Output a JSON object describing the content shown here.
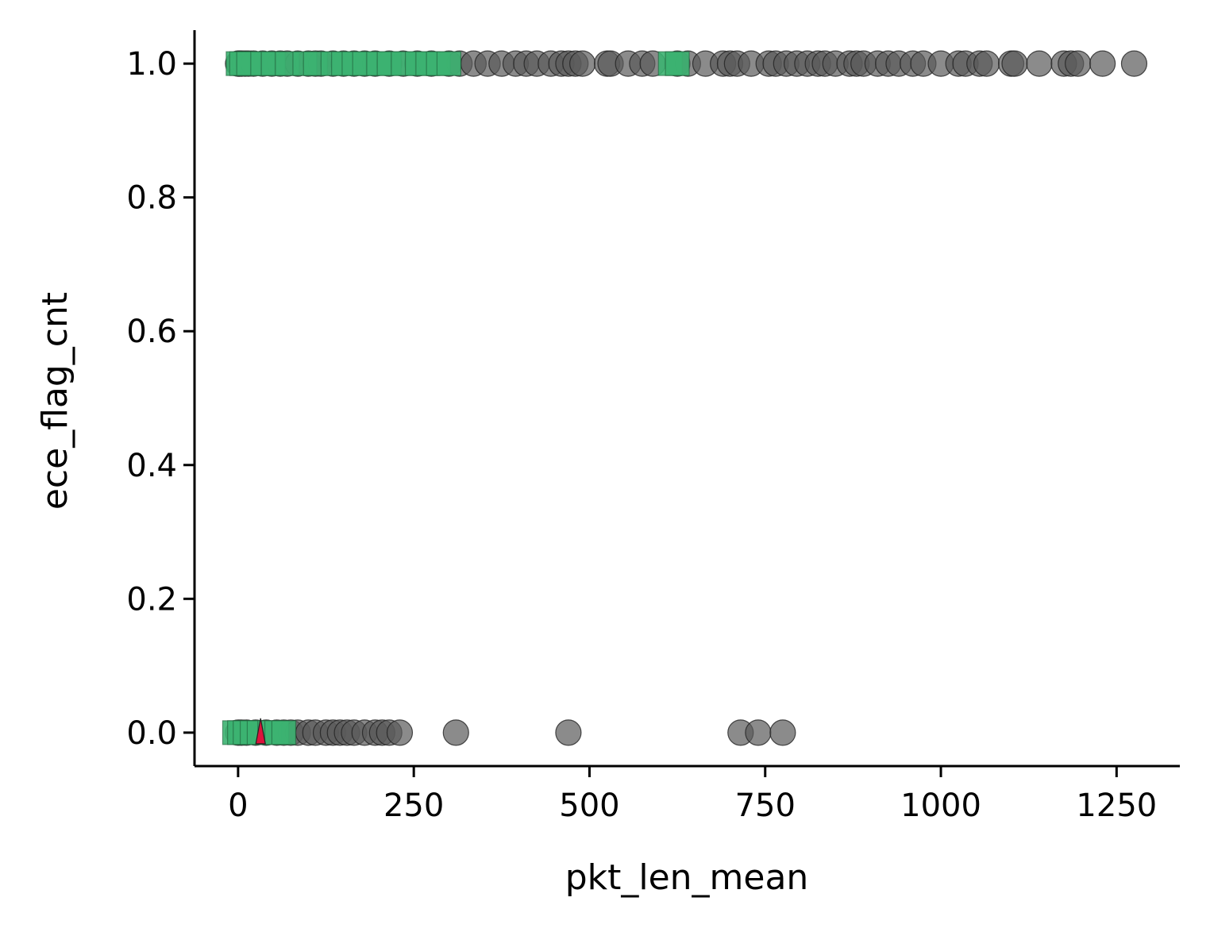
{
  "chart_data": {
    "type": "scatter",
    "xlabel": "pkt_len_mean",
    "ylabel": "ece_flag_cnt",
    "xlim": [
      -62,
      1340
    ],
    "ylim": [
      -0.05,
      1.05
    ],
    "x_ticks": [
      0,
      250,
      500,
      750,
      1000,
      1250
    ],
    "x_tick_labels": [
      "0",
      "250",
      "500",
      "750",
      "1000",
      "1250"
    ],
    "y_ticks": [
      0.0,
      0.2,
      0.4,
      0.6,
      0.8,
      1.0
    ],
    "y_tick_labels": [
      "0.0",
      "0.2",
      "0.4",
      "0.6",
      "0.8",
      "1.0"
    ],
    "grid": false,
    "series": [
      {
        "marker": "circle",
        "color": "#5a5a5a",
        "points": [
          [
            0,
            1
          ],
          [
            2,
            1
          ],
          [
            5,
            1
          ],
          [
            10,
            1
          ],
          [
            15,
            1
          ],
          [
            22,
            1
          ],
          [
            35,
            1
          ],
          [
            48,
            1
          ],
          [
            60,
            1
          ],
          [
            70,
            1
          ],
          [
            85,
            1
          ],
          [
            100,
            1
          ],
          [
            110,
            1
          ],
          [
            118,
            1
          ],
          [
            135,
            1
          ],
          [
            150,
            1
          ],
          [
            165,
            1
          ],
          [
            180,
            1
          ],
          [
            195,
            1
          ],
          [
            215,
            1
          ],
          [
            235,
            1
          ],
          [
            255,
            1
          ],
          [
            275,
            1
          ],
          [
            300,
            1
          ],
          [
            315,
            1
          ],
          [
            335,
            1
          ],
          [
            355,
            1
          ],
          [
            375,
            1
          ],
          [
            395,
            1
          ],
          [
            410,
            1
          ],
          [
            425,
            1
          ],
          [
            445,
            1
          ],
          [
            460,
            1
          ],
          [
            470,
            1
          ],
          [
            480,
            1
          ],
          [
            490,
            1
          ],
          [
            525,
            1
          ],
          [
            530,
            1
          ],
          [
            555,
            1
          ],
          [
            575,
            1
          ],
          [
            590,
            1
          ],
          [
            625,
            1
          ],
          [
            640,
            1
          ],
          [
            665,
            1
          ],
          [
            690,
            1
          ],
          [
            700,
            1
          ],
          [
            710,
            1
          ],
          [
            730,
            1
          ],
          [
            755,
            1
          ],
          [
            765,
            1
          ],
          [
            780,
            1
          ],
          [
            795,
            1
          ],
          [
            810,
            1
          ],
          [
            825,
            1
          ],
          [
            835,
            1
          ],
          [
            850,
            1
          ],
          [
            870,
            1
          ],
          [
            880,
            1
          ],
          [
            890,
            1
          ],
          [
            910,
            1
          ],
          [
            925,
            1
          ],
          [
            940,
            1
          ],
          [
            960,
            1
          ],
          [
            975,
            1
          ],
          [
            1000,
            1
          ],
          [
            1025,
            1
          ],
          [
            1035,
            1
          ],
          [
            1055,
            1
          ],
          [
            1065,
            1
          ],
          [
            1100,
            1
          ],
          [
            1105,
            1
          ],
          [
            1140,
            1
          ],
          [
            1175,
            1
          ],
          [
            1185,
            1
          ],
          [
            1195,
            1
          ],
          [
            1230,
            1
          ],
          [
            1275,
            1
          ],
          [
            0,
            0
          ],
          [
            5,
            0
          ],
          [
            12,
            0
          ],
          [
            25,
            0
          ],
          [
            40,
            0
          ],
          [
            55,
            0
          ],
          [
            65,
            0
          ],
          [
            75,
            0
          ],
          [
            85,
            0
          ],
          [
            100,
            0
          ],
          [
            110,
            0
          ],
          [
            125,
            0
          ],
          [
            135,
            0
          ],
          [
            145,
            0
          ],
          [
            155,
            0
          ],
          [
            165,
            0
          ],
          [
            180,
            0
          ],
          [
            195,
            0
          ],
          [
            205,
            0
          ],
          [
            215,
            0
          ],
          [
            230,
            0
          ],
          [
            310,
            0
          ],
          [
            470,
            0
          ],
          [
            715,
            0
          ],
          [
            740,
            0
          ],
          [
            775,
            0
          ]
        ]
      },
      {
        "marker": "square",
        "color": "#3cb371",
        "points": [
          [
            0,
            1
          ],
          [
            5,
            1
          ],
          [
            15,
            1
          ],
          [
            35,
            1
          ],
          [
            50,
            1
          ],
          [
            70,
            1
          ],
          [
            95,
            1
          ],
          [
            110,
            1
          ],
          [
            135,
            1
          ],
          [
            150,
            1
          ],
          [
            165,
            1
          ],
          [
            180,
            1
          ],
          [
            200,
            1
          ],
          [
            215,
            1
          ],
          [
            235,
            1
          ],
          [
            255,
            1
          ],
          [
            270,
            1
          ],
          [
            285,
            1
          ],
          [
            300,
            1
          ],
          [
            615,
            1
          ],
          [
            625,
            1
          ],
          [
            -5,
            0
          ],
          [
            2,
            0
          ],
          [
            10,
            0
          ],
          [
            20,
            0
          ],
          [
            30,
            0
          ],
          [
            45,
            0
          ],
          [
            55,
            0
          ],
          [
            65,
            0
          ]
        ]
      },
      {
        "marker": "triangle",
        "color": "#dc143c",
        "points": [
          [
            32,
            0
          ]
        ]
      }
    ]
  }
}
